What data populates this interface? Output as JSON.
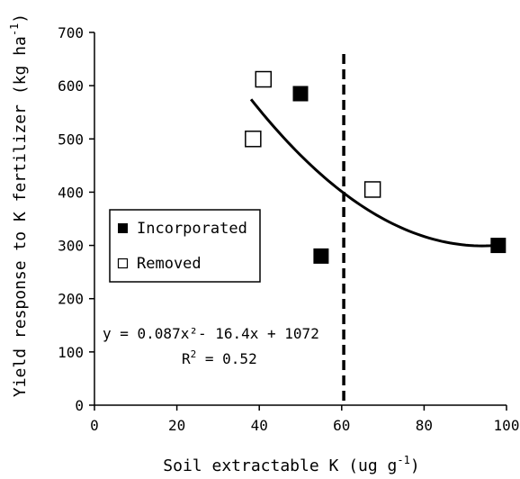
{
  "chart_data": {
    "type": "scatter",
    "xlabel": "Soil extractable K (ug g",
    "xlabel_sup": "-1",
    "xlabel_tail": ")",
    "ylabel": "Yield response to K fertilizer (kg ha",
    "ylabel_sup": "-1",
    "ylabel_tail": ")",
    "xlim": [
      0,
      100
    ],
    "ylim": [
      0,
      700
    ],
    "x_ticks": [
      "0",
      "20",
      "40",
      "60",
      "80",
      "100"
    ],
    "y_ticks": [
      "0",
      "100",
      "200",
      "300",
      "400",
      "500",
      "600",
      "700"
    ],
    "grid": false,
    "legend_position": "left",
    "series": [
      {
        "name": "Incorporated",
        "marker": "filled-square",
        "color": "#000000",
        "points": [
          {
            "x": 50,
            "y": 585
          },
          {
            "x": 55,
            "y": 280
          },
          {
            "x": 98,
            "y": 300
          }
        ]
      },
      {
        "name": "Removed",
        "marker": "open-square",
        "color": "#000000",
        "points": [
          {
            "x": 38.5,
            "y": 500
          },
          {
            "x": 41,
            "y": 612
          },
          {
            "x": 67.5,
            "y": 405
          }
        ]
      }
    ],
    "trendline": {
      "type": "quadratic",
      "coefficients": {
        "a": 0.087,
        "b": -16.4,
        "c": 1072
      },
      "x_range": [
        38,
        97
      ]
    },
    "threshold_line": {
      "x": 60.5,
      "style": "dashed"
    },
    "equation_text": "y = 0.087x²- 16.4x + 1072",
    "r2_prefix": "R",
    "r2_sup": "2",
    "r2_value": " = 0.52"
  }
}
